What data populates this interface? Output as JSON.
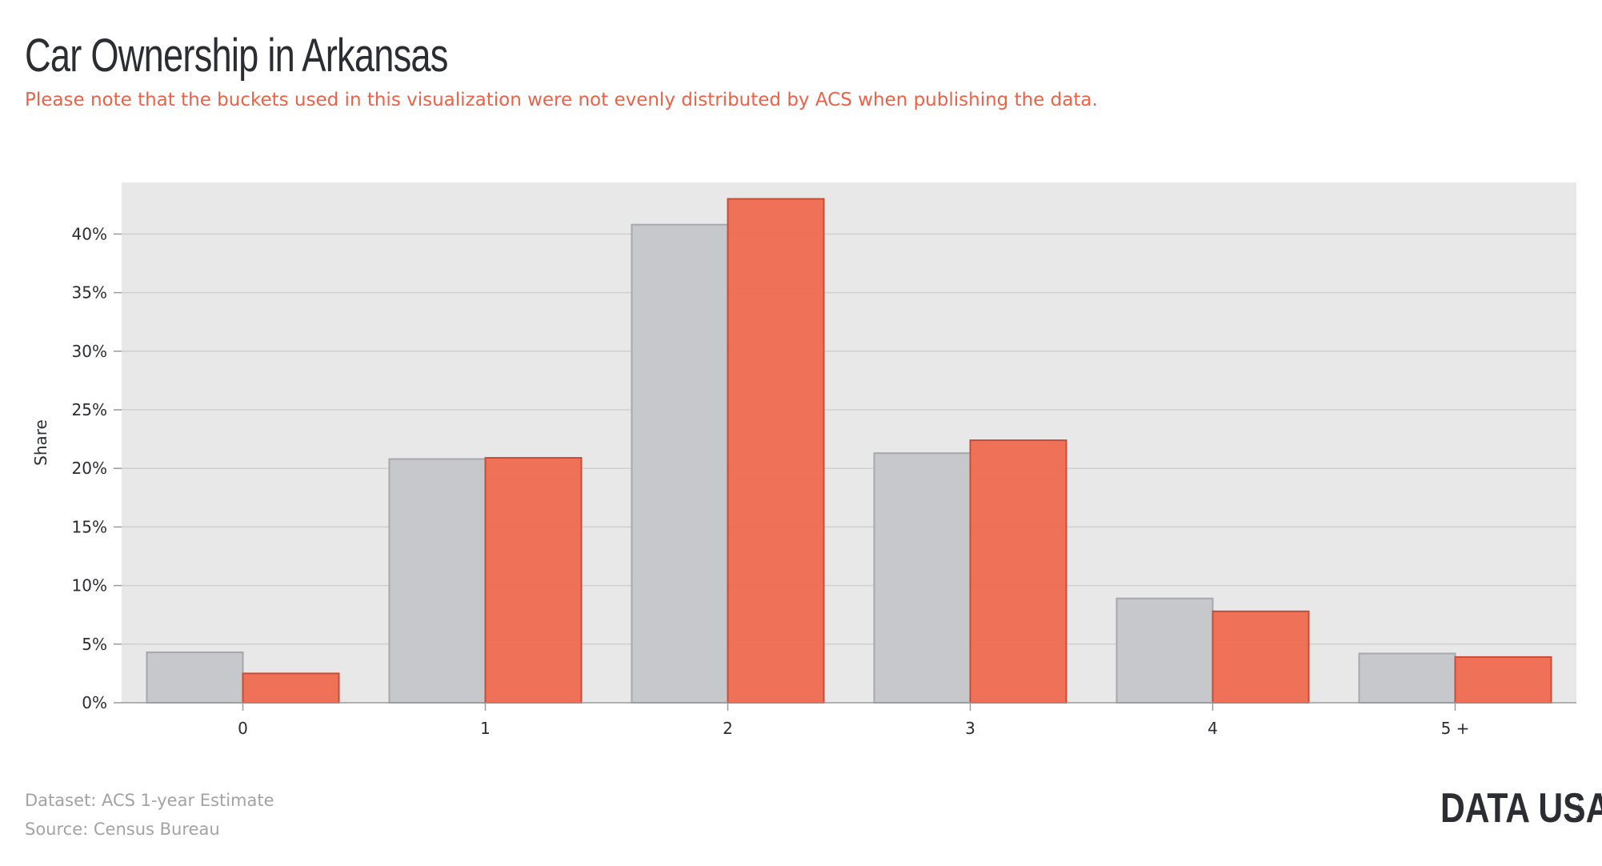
{
  "header": {
    "title": "Car Ownership in Arkansas",
    "subtitle": "Please note that the buckets used in this visualization were not evenly distributed by ACS when publishing the data."
  },
  "footer": {
    "dataset": "Dataset: ACS 1-year Estimate",
    "source": "Source: Census Bureau"
  },
  "logo": {
    "text": "DATA USA",
    "icon": "star-icon"
  },
  "colors": {
    "series_a": "#c7c8cc",
    "series_a_stroke": "#a7a8ad",
    "series_b": "#ee6c53",
    "series_b_stroke": "#c94c36",
    "plot_bg": "#e8e8e8",
    "grid": "#cfcfcf"
  },
  "chart_data": {
    "type": "bar",
    "categories": [
      "0",
      "1",
      "2",
      "3",
      "4",
      "5 +"
    ],
    "series": [
      {
        "values": [
          4.3,
          20.8,
          40.8,
          21.3,
          8.9,
          4.2
        ]
      },
      {
        "values": [
          2.5,
          20.9,
          43.0,
          22.4,
          7.8,
          3.9
        ]
      }
    ],
    "ylabel": "Share",
    "xlabel": "",
    "ylim": [
      0,
      44.4
    ],
    "yticks": [
      0,
      5,
      10,
      15,
      20,
      25,
      30,
      35,
      40
    ],
    "ytick_labels": [
      "0%",
      "5%",
      "10%",
      "15%",
      "20%",
      "25%",
      "30%",
      "35%",
      "40%"
    ],
    "grid": true,
    "legend": "none"
  }
}
